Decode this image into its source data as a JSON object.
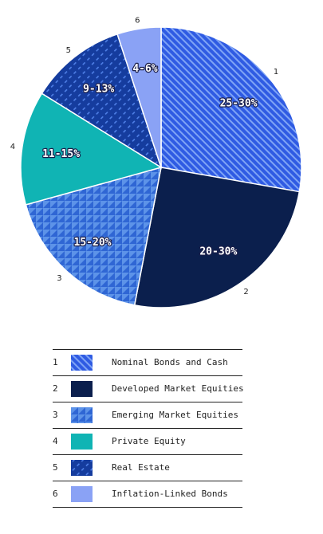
{
  "chart_data": {
    "type": "pie",
    "slices": [
      {
        "number": "1",
        "label": "Nominal Bonds and Cash",
        "value_label": "25-30%",
        "value": 27.5,
        "color": "#2f5be3",
        "pattern": "stripes"
      },
      {
        "number": "2",
        "label": "Developed Market Equities",
        "value_label": "20-30%",
        "value": 25,
        "color": "#0b1f4d",
        "pattern": "solid"
      },
      {
        "number": "3",
        "label": "Emerging Market Equities",
        "value_label": "15-20%",
        "value": 17.5,
        "color": "#3d7bd9",
        "pattern": "triangles"
      },
      {
        "number": "4",
        "label": "Private Equity",
        "value_label": "11-15%",
        "value": 13,
        "color": "#10b4b4",
        "pattern": "solid"
      },
      {
        "number": "5",
        "label": "Real Estate",
        "value_label": "9-13%",
        "value": 11,
        "color": "#153c9e",
        "pattern": "dashes"
      },
      {
        "number": "6",
        "label": "Inflation-Linked Bonds",
        "value_label": "4-6%",
        "value": 5,
        "color": "#8aa2f5",
        "pattern": "solid"
      }
    ],
    "legend_placement": "bottom"
  }
}
